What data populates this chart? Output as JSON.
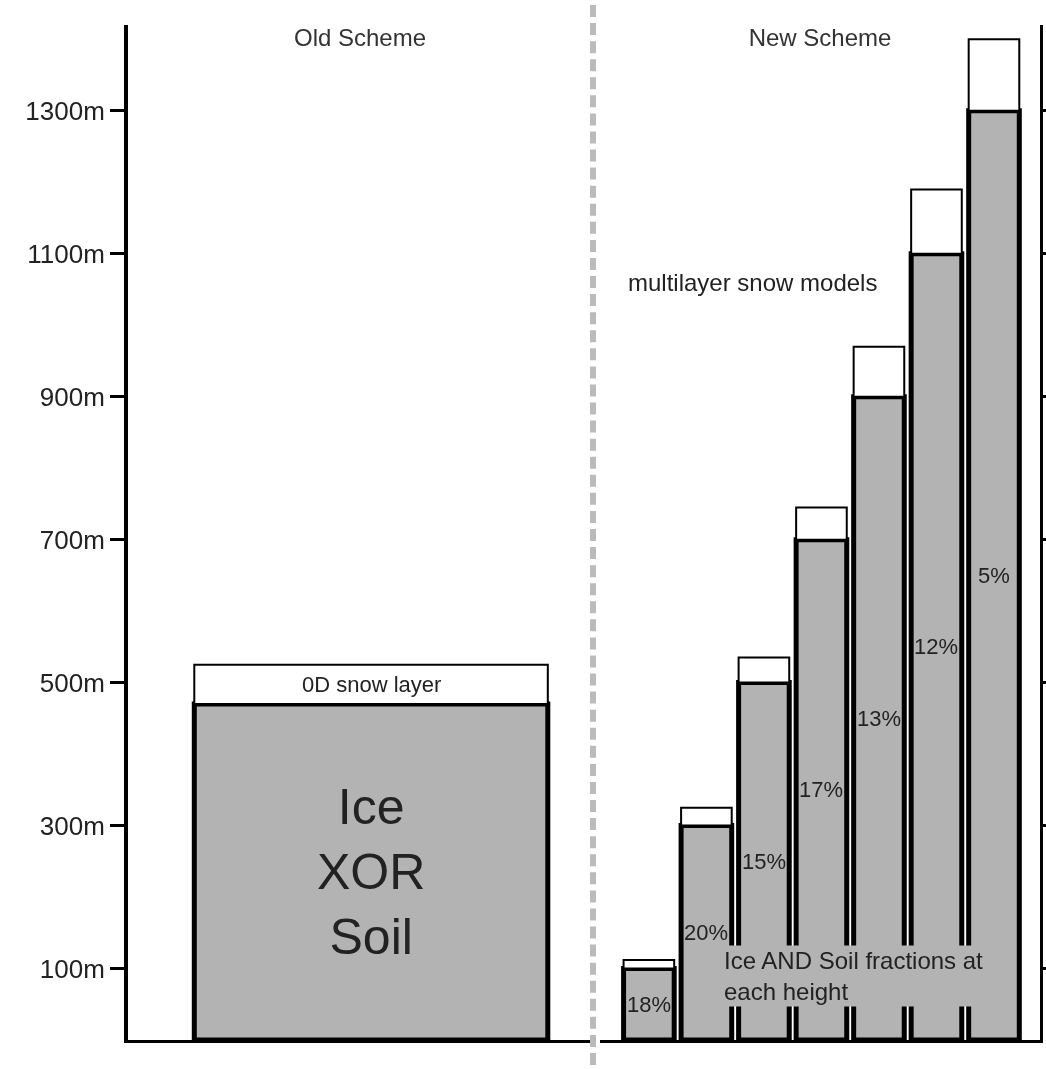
{
  "chart_data": [
    {
      "type": "bar",
      "title": "Old Scheme",
      "categories": [
        null
      ],
      "stacked": true,
      "series": [
        {
          "color": "#b3b3b3",
          "values": [
            470
          ]
        },
        {
          "color": "#ffffff",
          "values": [
            55
          ]
        }
      ],
      "ylim": [
        0,
        1420
      ],
      "yticks": [
        {
          "value": 100,
          "label": "100m"
        },
        {
          "value": 300,
          "label": "300m"
        },
        {
          "value": 500,
          "label": "500m"
        },
        {
          "value": 700,
          "label": "700m"
        },
        {
          "value": 900,
          "label": "900m"
        },
        {
          "value": 1100,
          "label": "1100m"
        },
        {
          "value": 1300,
          "label": "1300m"
        }
      ],
      "annotations": [
        "Ice\nXOR\nSoil",
        "0D snow layer"
      ]
    },
    {
      "type": "bar",
      "title": "New Scheme",
      "categories": [
        null,
        null,
        null,
        null,
        null,
        null,
        null
      ],
      "stacked": true,
      "series": [
        {
          "color": "#b3b3b3",
          "values": [
            100,
            300,
            500,
            700,
            900,
            1100,
            1300
          ]
        },
        {
          "color": "#ffffff",
          "values": [
            12,
            25,
            35,
            45,
            70,
            90,
            100
          ]
        }
      ],
      "ylim": [
        0,
        1420
      ],
      "yticks": [
        {
          "value": 100,
          "label": null
        },
        {
          "value": 300,
          "label": null
        },
        {
          "value": 500,
          "label": null
        },
        {
          "value": 700,
          "label": null
        },
        {
          "value": 900,
          "label": null
        },
        {
          "value": 1100,
          "label": null
        },
        {
          "value": 1300,
          "label": null
        }
      ],
      "tick_labels": false,
      "annotations": [
        "18%",
        "20%",
        "15%",
        "17%",
        "13%",
        "12%",
        "5%",
        "multilayer snow models",
        "Ice AND Soil fractions at each height"
      ]
    }
  ]
}
